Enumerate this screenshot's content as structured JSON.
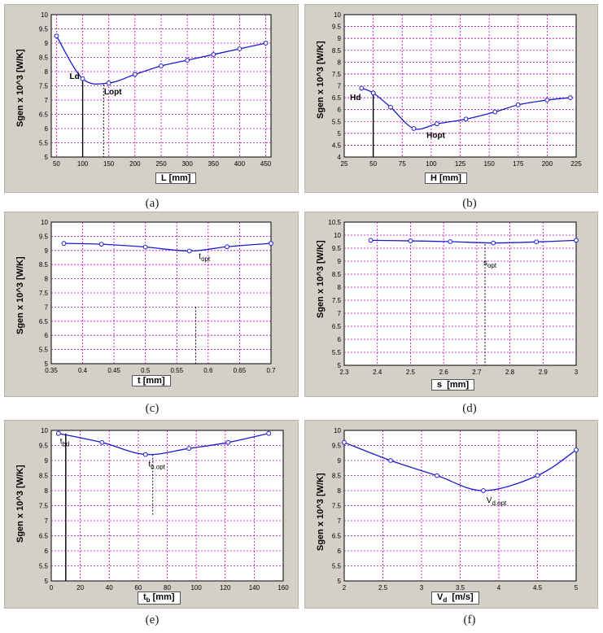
{
  "chart_data": [
    {
      "type": "line",
      "caption": "(a)",
      "ylabel": "Sgen x 10^3 [W/K]",
      "xlabel": "L [mm]",
      "xlim": [
        40,
        460
      ],
      "ylim": [
        5,
        10
      ],
      "xticks": [
        50,
        100,
        150,
        200,
        250,
        300,
        350,
        400,
        450
      ],
      "yticks": [
        5,
        5.5,
        6,
        6.5,
        7,
        7.5,
        8,
        8.5,
        9,
        9.5,
        10
      ],
      "x": [
        50,
        100,
        150,
        200,
        250,
        300,
        350,
        400,
        450
      ],
      "y": [
        9.25,
        7.75,
        7.6,
        7.9,
        8.2,
        8.4,
        8.6,
        8.8,
        9.0
      ],
      "annotations": [
        {
          "text": "Ld",
          "x": 75,
          "y": 7.75
        },
        {
          "text": "Lopt",
          "x": 141,
          "y": 7.2
        }
      ],
      "vlines": [
        {
          "x": 100,
          "y_top": 7.75,
          "style": "solid"
        },
        {
          "x": 140,
          "y_top": 7.55,
          "style": "dashed"
        }
      ]
    },
    {
      "type": "line",
      "caption": "(b)",
      "ylabel": "Sgen x 10^3 [W/K]",
      "xlabel": "H [mm]",
      "xlim": [
        25,
        225
      ],
      "ylim": [
        4,
        10
      ],
      "xticks": [
        25,
        50,
        75,
        100,
        125,
        150,
        175,
        200,
        225
      ],
      "yticks": [
        4,
        4.5,
        5,
        5.5,
        6,
        6.5,
        7,
        7.5,
        8,
        8.5,
        9,
        9.5,
        10
      ],
      "x": [
        40,
        50,
        65,
        85,
        105,
        130,
        155,
        175,
        200,
        220
      ],
      "y": [
        6.9,
        6.7,
        6.1,
        5.2,
        5.4,
        5.6,
        5.9,
        6.2,
        6.4,
        6.5
      ],
      "annotations": [
        {
          "text": "Hd",
          "x": 30,
          "y": 6.4
        },
        {
          "text": "Hopt",
          "x": 96,
          "y": 4.8
        }
      ],
      "vlines": [
        {
          "x": 50,
          "y_top": 6.7,
          "style": "solid"
        }
      ]
    },
    {
      "type": "line",
      "caption": "(c)",
      "ylabel": "Sgen x 10^3 [W/K]",
      "xlabel": "t [mm]",
      "xlim": [
        0.35,
        0.7
      ],
      "ylim": [
        5,
        10
      ],
      "xticks": [
        0.35,
        0.4,
        0.45,
        0.5,
        0.55,
        0.6,
        0.65,
        0.7
      ],
      "yticks": [
        5,
        5.5,
        6,
        6.5,
        7,
        7.5,
        8,
        8.5,
        9,
        9.5,
        10
      ],
      "x": [
        0.37,
        0.43,
        0.5,
        0.57,
        0.63,
        0.7
      ],
      "y": [
        9.25,
        9.22,
        9.12,
        8.98,
        9.13,
        9.25
      ],
      "annotations": [
        {
          "text": "t",
          "sub": "opt",
          "x": 0.585,
          "y": 8.7
        }
      ],
      "vlines": [
        {
          "x": 0.58,
          "y_top": 7.0,
          "style": "dashed"
        }
      ]
    },
    {
      "type": "line",
      "caption": "(d)",
      "ylabel": "Sgen x 10^3 [W/K]",
      "xlabel": "s  [mm]",
      "xlim": [
        2.3,
        3.0
      ],
      "ylim": [
        5,
        10.5
      ],
      "xticks": [
        2.3,
        2.4,
        2.5,
        2.6,
        2.7,
        2.8,
        2.9,
        3
      ],
      "yticks": [
        5,
        5.5,
        6,
        6.5,
        7,
        7.5,
        8,
        8.5,
        9,
        9.5,
        10,
        10.5
      ],
      "x": [
        2.38,
        2.5,
        2.62,
        2.75,
        2.88,
        3.0
      ],
      "y": [
        9.8,
        9.78,
        9.75,
        9.7,
        9.74,
        9.8
      ],
      "annotations": [
        {
          "text": "s",
          "sub": "opt",
          "x": 2.72,
          "y": 8.85
        }
      ],
      "vlines": [
        {
          "x": 2.725,
          "y_top": 9.65,
          "style": "dashed"
        }
      ]
    },
    {
      "type": "line",
      "caption": "(e)",
      "ylabel": "Sgen x 10^3 [W/K]",
      "xlabel": "t_b [mm]",
      "xlim": [
        0,
        160
      ],
      "ylim": [
        5,
        10
      ],
      "xticks": [
        0,
        20,
        40,
        60,
        80,
        100,
        120,
        140,
        160
      ],
      "yticks": [
        5,
        5.5,
        6,
        6.5,
        7,
        7.5,
        8,
        8.5,
        9,
        9.5,
        10
      ],
      "x": [
        5,
        35,
        65,
        95,
        122,
        150
      ],
      "y": [
        9.9,
        9.6,
        9.2,
        9.4,
        9.6,
        9.9
      ],
      "annotations": [
        {
          "text": "t",
          "sub": "bd",
          "x": 6,
          "y": 9.55
        },
        {
          "text": "t",
          "sub": "b.opt",
          "x": 67,
          "y": 8.8
        }
      ],
      "vlines": [
        {
          "x": 10,
          "y_top": 9.9,
          "style": "solid"
        },
        {
          "x": 70,
          "y_top": 9.2,
          "y_bottom": 7.2,
          "style": "dashed"
        }
      ]
    },
    {
      "type": "line",
      "caption": "(f)",
      "ylabel": "Sgen x 10^3 [W/K]",
      "xlabel": "V_d [m/s]",
      "xlim": [
        2,
        5
      ],
      "ylim": [
        5,
        10
      ],
      "xticks": [
        2,
        2.5,
        3,
        3.5,
        4,
        4.5,
        5
      ],
      "yticks": [
        5,
        5.5,
        6,
        6.5,
        7,
        7.5,
        8,
        8.5,
        9,
        9.5,
        10
      ],
      "x": [
        2,
        2.6,
        3.2,
        3.8,
        4.5,
        5
      ],
      "y": [
        9.6,
        9.0,
        8.5,
        8.0,
        8.5,
        9.35
      ],
      "annotations": [
        {
          "text": "V",
          "sub": "d.opt",
          "x": 3.84,
          "y": 7.6
        }
      ],
      "vlines": []
    }
  ]
}
